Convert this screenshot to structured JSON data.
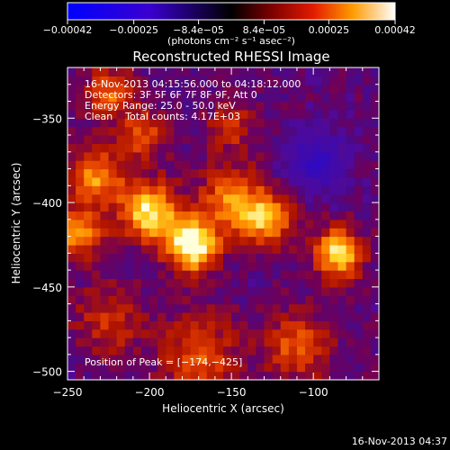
{
  "chart_data": {
    "type": "heatmap",
    "title": "Reconstructed RHESSI Image",
    "xlabel": "Heliocentric X (arcsec)",
    "ylabel": "Heliocentric Y (arcsec)",
    "xlim": [
      -250,
      -60
    ],
    "ylim": [
      -505,
      -320
    ],
    "xticks": [
      -250,
      -200,
      -150,
      -100
    ],
    "xtick_labels": [
      "−250",
      "−200",
      "−150",
      "−100"
    ],
    "yticks": [
      -350,
      -400,
      -450,
      -500
    ],
    "ytick_labels": [
      "−350",
      "−400",
      "−450",
      "−500"
    ],
    "colorbar": {
      "range": [
        -0.00042,
        0.00042
      ],
      "ticks": [
        -0.00042,
        -0.00025,
        -8.4e-05,
        8.4e-05,
        0.00025,
        0.00042
      ],
      "tick_labels": [
        "−0.00042",
        "−0.00025",
        "−8.4e−05",
        "8.4e−05",
        "0.00025",
        "0.00042"
      ],
      "unit_label": "(photons cm⁻² s⁻¹ asec⁻²)"
    },
    "annotations": [
      "16-Nov-2013 04:15:56.000 to 04:18:12.000",
      "Detectors: 3F 5F 6F 7F 8F 9F, Att 0",
      "Energy Range: 25.0 - 50.0 keV",
      "Clean    Total counts: 4.17E+03"
    ],
    "peak_label": "Position of Peak = [−174,−425]",
    "peak": {
      "x": -174,
      "y": -425
    },
    "sources": [
      {
        "x": -174,
        "y": -425,
        "sigma": 11,
        "amp": 1.0
      },
      {
        "x": -200,
        "y": -405,
        "sigma": 12,
        "amp": 0.85
      },
      {
        "x": -232,
        "y": -385,
        "sigma": 12,
        "amp": 0.6
      },
      {
        "x": -243,
        "y": -418,
        "sigma": 10,
        "amp": 0.6
      },
      {
        "x": -150,
        "y": -398,
        "sigma": 13,
        "amp": 0.6
      },
      {
        "x": -128,
        "y": -410,
        "sigma": 11,
        "amp": 0.65
      },
      {
        "x": -85,
        "y": -430,
        "sigma": 10,
        "amp": 0.85
      },
      {
        "x": -205,
        "y": -360,
        "sigma": 10,
        "amp": 0.45
      },
      {
        "x": -225,
        "y": -335,
        "sigma": 10,
        "amp": 0.5
      },
      {
        "x": -170,
        "y": -490,
        "sigma": 16,
        "amp": 0.45
      },
      {
        "x": -110,
        "y": -485,
        "sigma": 14,
        "amp": 0.45
      },
      {
        "x": -225,
        "y": -470,
        "sigma": 14,
        "amp": 0.35
      },
      {
        "x": -150,
        "y": -355,
        "sigma": 10,
        "amp": 0.35
      }
    ],
    "negative_region": {
      "x": -98,
      "y": -375,
      "sigma": 12,
      "amp": -0.55
    }
  },
  "footer": {
    "timestamp": "16-Nov-2013 04:37"
  }
}
